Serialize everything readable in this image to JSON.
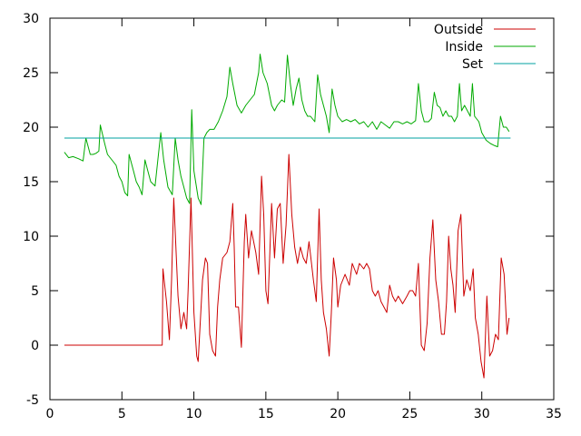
{
  "chart_data": {
    "type": "line",
    "title": "",
    "xlabel": "",
    "ylabel": "",
    "xlim": [
      0,
      35
    ],
    "ylim": [
      -5,
      30
    ],
    "xticks": [
      0,
      5,
      10,
      15,
      20,
      25,
      30,
      35
    ],
    "yticks": [
      -5,
      0,
      5,
      10,
      15,
      20,
      25,
      30
    ],
    "grid": false,
    "legend_position": "top-right",
    "series": [
      {
        "name": "Outside",
        "color": "#cc0000",
        "points": [
          [
            1.0,
            0.0
          ],
          [
            7.8,
            0.0
          ],
          [
            7.85,
            7.0
          ],
          [
            8.1,
            4.0
          ],
          [
            8.3,
            0.5
          ],
          [
            8.45,
            6.0
          ],
          [
            8.6,
            13.5
          ],
          [
            8.9,
            4.5
          ],
          [
            9.1,
            1.5
          ],
          [
            9.3,
            3.0
          ],
          [
            9.5,
            1.5
          ],
          [
            9.6,
            5.0
          ],
          [
            9.8,
            13.5
          ],
          [
            10.0,
            3.0
          ],
          [
            10.2,
            -1.0
          ],
          [
            10.3,
            -1.5
          ],
          [
            10.6,
            6.0
          ],
          [
            10.8,
            8.0
          ],
          [
            10.95,
            7.5
          ],
          [
            11.1,
            1.0
          ],
          [
            11.3,
            -0.5
          ],
          [
            11.5,
            -1.0
          ],
          [
            11.65,
            3.5
          ],
          [
            11.8,
            6.0
          ],
          [
            12.0,
            8.0
          ],
          [
            12.3,
            8.5
          ],
          [
            12.5,
            9.5
          ],
          [
            12.7,
            13.0
          ],
          [
            12.8,
            9.0
          ],
          [
            12.9,
            3.5
          ],
          [
            13.1,
            3.5
          ],
          [
            13.3,
            -0.2
          ],
          [
            13.5,
            9.5
          ],
          [
            13.6,
            12.0
          ],
          [
            13.8,
            8.0
          ],
          [
            14.0,
            10.5
          ],
          [
            14.3,
            8.5
          ],
          [
            14.5,
            6.5
          ],
          [
            14.7,
            15.5
          ],
          [
            14.85,
            12.0
          ],
          [
            15.0,
            5.0
          ],
          [
            15.15,
            3.8
          ],
          [
            15.4,
            13.0
          ],
          [
            15.6,
            8.0
          ],
          [
            15.8,
            12.5
          ],
          [
            16.0,
            13.0
          ],
          [
            16.2,
            7.5
          ],
          [
            16.4,
            11.0
          ],
          [
            16.6,
            17.5
          ],
          [
            16.8,
            12.0
          ],
          [
            17.0,
            9.0
          ],
          [
            17.2,
            7.5
          ],
          [
            17.4,
            9.0
          ],
          [
            17.6,
            8.0
          ],
          [
            17.8,
            7.5
          ],
          [
            18.0,
            9.5
          ],
          [
            18.3,
            6.0
          ],
          [
            18.5,
            4.0
          ],
          [
            18.7,
            12.5
          ],
          [
            18.85,
            6.0
          ],
          [
            19.0,
            3.0
          ],
          [
            19.2,
            1.5
          ],
          [
            19.4,
            -1.0
          ],
          [
            19.55,
            3.0
          ],
          [
            19.7,
            8.0
          ],
          [
            19.9,
            6.0
          ],
          [
            20.0,
            3.5
          ],
          [
            20.2,
            5.5
          ],
          [
            20.5,
            6.5
          ],
          [
            20.8,
            5.5
          ],
          [
            21.0,
            7.5
          ],
          [
            21.3,
            6.5
          ],
          [
            21.5,
            7.5
          ],
          [
            21.8,
            7.0
          ],
          [
            22.0,
            7.5
          ],
          [
            22.2,
            7.0
          ],
          [
            22.4,
            5.0
          ],
          [
            22.6,
            4.5
          ],
          [
            22.8,
            5.0
          ],
          [
            23.0,
            4.0
          ],
          [
            23.2,
            3.5
          ],
          [
            23.4,
            3.0
          ],
          [
            23.6,
            5.5
          ],
          [
            23.8,
            4.5
          ],
          [
            24.0,
            4.0
          ],
          [
            24.2,
            4.5
          ],
          [
            24.5,
            3.8
          ],
          [
            24.8,
            4.5
          ],
          [
            25.0,
            5.0
          ],
          [
            25.2,
            5.0
          ],
          [
            25.4,
            4.5
          ],
          [
            25.6,
            7.5
          ],
          [
            25.8,
            0.0
          ],
          [
            26.0,
            -0.5
          ],
          [
            26.2,
            2.0
          ],
          [
            26.4,
            8.0
          ],
          [
            26.6,
            11.5
          ],
          [
            26.8,
            6.0
          ],
          [
            27.0,
            4.0
          ],
          [
            27.2,
            1.0
          ],
          [
            27.4,
            1.0
          ],
          [
            27.55,
            4.0
          ],
          [
            27.7,
            10.0
          ],
          [
            27.85,
            7.0
          ],
          [
            28.0,
            5.5
          ],
          [
            28.15,
            3.0
          ],
          [
            28.35,
            10.5
          ],
          [
            28.55,
            12.0
          ],
          [
            28.75,
            4.5
          ],
          [
            28.95,
            6.0
          ],
          [
            29.2,
            5.0
          ],
          [
            29.4,
            7.0
          ],
          [
            29.55,
            2.5
          ],
          [
            29.75,
            1.0
          ],
          [
            29.95,
            -1.5
          ],
          [
            30.15,
            -3.0
          ],
          [
            30.35,
            4.5
          ],
          [
            30.55,
            -1.0
          ],
          [
            30.75,
            -0.5
          ],
          [
            30.95,
            1.0
          ],
          [
            31.15,
            0.5
          ],
          [
            31.35,
            8.0
          ],
          [
            31.55,
            6.5
          ],
          [
            31.75,
            1.0
          ],
          [
            31.9,
            2.5
          ]
        ]
      },
      {
        "name": "Inside",
        "color": "#00aa00",
        "points": [
          [
            1.0,
            17.7
          ],
          [
            1.3,
            17.2
          ],
          [
            1.6,
            17.3
          ],
          [
            2.0,
            17.1
          ],
          [
            2.3,
            16.9
          ],
          [
            2.5,
            19.0
          ],
          [
            2.8,
            17.5
          ],
          [
            3.0,
            17.5
          ],
          [
            3.2,
            17.6
          ],
          [
            3.4,
            17.8
          ],
          [
            3.5,
            20.2
          ],
          [
            3.8,
            18.5
          ],
          [
            4.0,
            17.5
          ],
          [
            4.3,
            17.0
          ],
          [
            4.6,
            16.5
          ],
          [
            4.8,
            15.5
          ],
          [
            5.0,
            15.0
          ],
          [
            5.2,
            14.0
          ],
          [
            5.4,
            13.7
          ],
          [
            5.5,
            17.5
          ],
          [
            5.8,
            16.0
          ],
          [
            6.0,
            15.0
          ],
          [
            6.2,
            14.5
          ],
          [
            6.4,
            13.8
          ],
          [
            6.6,
            17.0
          ],
          [
            6.8,
            16.0
          ],
          [
            7.0,
            15.0
          ],
          [
            7.3,
            14.6
          ],
          [
            7.7,
            19.5
          ],
          [
            7.9,
            17.0
          ],
          [
            8.2,
            14.5
          ],
          [
            8.5,
            13.8
          ],
          [
            8.7,
            19.0
          ],
          [
            8.9,
            17.0
          ],
          [
            9.1,
            15.5
          ],
          [
            9.3,
            14.5
          ],
          [
            9.5,
            13.5
          ],
          [
            9.7,
            13.0
          ],
          [
            9.85,
            21.6
          ],
          [
            10.0,
            16.0
          ],
          [
            10.3,
            13.5
          ],
          [
            10.5,
            12.9
          ],
          [
            10.7,
            19.0
          ],
          [
            10.9,
            19.5
          ],
          [
            11.1,
            19.8
          ],
          [
            11.4,
            19.8
          ],
          [
            11.7,
            20.5
          ],
          [
            12.0,
            21.5
          ],
          [
            12.3,
            22.8
          ],
          [
            12.5,
            25.5
          ],
          [
            12.7,
            24.0
          ],
          [
            13.0,
            22.0
          ],
          [
            13.3,
            21.3
          ],
          [
            13.6,
            22.0
          ],
          [
            13.9,
            22.5
          ],
          [
            14.2,
            23.0
          ],
          [
            14.5,
            25.0
          ],
          [
            14.6,
            26.7
          ],
          [
            14.8,
            25.0
          ],
          [
            15.1,
            24.0
          ],
          [
            15.4,
            22.0
          ],
          [
            15.6,
            21.5
          ],
          [
            15.8,
            22.0
          ],
          [
            16.1,
            22.5
          ],
          [
            16.3,
            22.3
          ],
          [
            16.5,
            26.6
          ],
          [
            16.7,
            24.0
          ],
          [
            16.9,
            22.0
          ],
          [
            17.1,
            23.5
          ],
          [
            17.3,
            24.5
          ],
          [
            17.5,
            22.5
          ],
          [
            17.7,
            21.5
          ],
          [
            17.9,
            21.0
          ],
          [
            18.1,
            21.0
          ],
          [
            18.4,
            20.5
          ],
          [
            18.6,
            24.8
          ],
          [
            18.8,
            23.0
          ],
          [
            19.0,
            22.0
          ],
          [
            19.2,
            21.0
          ],
          [
            19.4,
            19.5
          ],
          [
            19.6,
            23.5
          ],
          [
            19.8,
            22.0
          ],
          [
            20.0,
            21.0
          ],
          [
            20.3,
            20.5
          ],
          [
            20.6,
            20.7
          ],
          [
            20.9,
            20.5
          ],
          [
            21.2,
            20.7
          ],
          [
            21.5,
            20.3
          ],
          [
            21.8,
            20.5
          ],
          [
            22.1,
            20.0
          ],
          [
            22.4,
            20.5
          ],
          [
            22.7,
            19.8
          ],
          [
            23.0,
            20.5
          ],
          [
            23.3,
            20.2
          ],
          [
            23.6,
            19.9
          ],
          [
            23.9,
            20.5
          ],
          [
            24.2,
            20.5
          ],
          [
            24.5,
            20.3
          ],
          [
            24.8,
            20.5
          ],
          [
            25.1,
            20.3
          ],
          [
            25.4,
            20.6
          ],
          [
            25.6,
            24.0
          ],
          [
            25.8,
            21.5
          ],
          [
            26.0,
            20.5
          ],
          [
            26.3,
            20.5
          ],
          [
            26.5,
            20.8
          ],
          [
            26.7,
            23.2
          ],
          [
            26.9,
            22.0
          ],
          [
            27.1,
            21.8
          ],
          [
            27.3,
            21.0
          ],
          [
            27.5,
            21.5
          ],
          [
            27.7,
            21.0
          ],
          [
            27.9,
            21.0
          ],
          [
            28.1,
            20.5
          ],
          [
            28.3,
            21.0
          ],
          [
            28.45,
            24.0
          ],
          [
            28.6,
            21.5
          ],
          [
            28.8,
            22.0
          ],
          [
            29.0,
            21.5
          ],
          [
            29.2,
            21.0
          ],
          [
            29.35,
            24.0
          ],
          [
            29.5,
            21.0
          ],
          [
            29.8,
            20.5
          ],
          [
            30.0,
            19.5
          ],
          [
            30.3,
            18.8
          ],
          [
            30.6,
            18.5
          ],
          [
            30.9,
            18.3
          ],
          [
            31.1,
            18.2
          ],
          [
            31.3,
            21.0
          ],
          [
            31.5,
            20.0
          ],
          [
            31.7,
            20.0
          ],
          [
            31.9,
            19.6
          ]
        ]
      },
      {
        "name": "Set",
        "color": "#00a0a0",
        "points": [
          [
            1.0,
            19.0
          ],
          [
            32.0,
            19.0
          ]
        ]
      }
    ]
  }
}
